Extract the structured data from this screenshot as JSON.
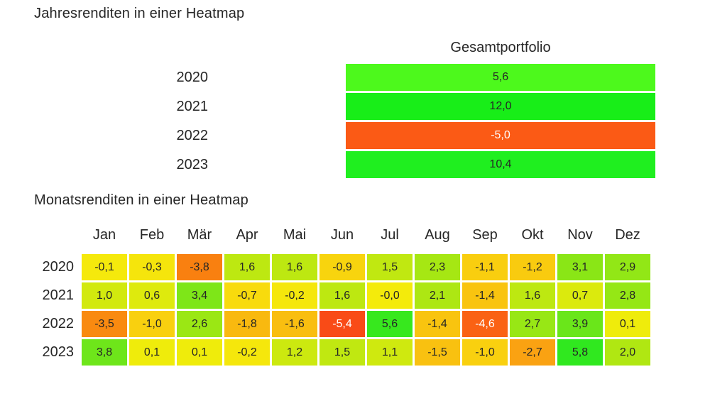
{
  "annual": {
    "title": "Jahresrenditen in einer Heatmap",
    "column_header": "Gesamtportfolio",
    "rows": [
      {
        "year": "2020",
        "value": "5,6",
        "color": "#4DF91C"
      },
      {
        "year": "2021",
        "value": "12,0",
        "color": "#18EE18"
      },
      {
        "year": "2022",
        "value": "-5,0",
        "color": "#FB5A15"
      },
      {
        "year": "2023",
        "value": "10,4",
        "color": "#1FEF1F"
      }
    ]
  },
  "monthly": {
    "title": "Monatsrenditen in einer Heatmap",
    "months": [
      "Jan",
      "Feb",
      "Mär",
      "Apr",
      "Mai",
      "Jun",
      "Jul",
      "Aug",
      "Sep",
      "Okt",
      "Nov",
      "Dez"
    ],
    "rows": [
      {
        "year": "2020",
        "values": [
          "-0,1",
          "-0,3",
          "-3,8",
          "1,6",
          "1,6",
          "-0,9",
          "1,5",
          "2,3",
          "-1,1",
          "-1,2",
          "3,1",
          "2,9"
        ],
        "colors": [
          "#F5E90C",
          "#F5E50C",
          "#F98010",
          "#BDE811",
          "#BDE811",
          "#F8D40E",
          "#C0E811",
          "#A6E713",
          "#F9CE0F",
          "#F9CB0F",
          "#8AE616",
          "#92E716"
        ]
      },
      {
        "year": "2021",
        "values": [
          "1,0",
          "0,6",
          "3,4",
          "-0,7",
          "-0,2",
          "1,6",
          "-0,0",
          "2,1",
          "-1,4",
          "1,6",
          "0,7",
          "2,8"
        ],
        "colors": [
          "#D2E90E",
          "#DEEA0D",
          "#7EE618",
          "#F8DB0D",
          "#F5E70C",
          "#BDE811",
          "#F4EB0B",
          "#ADE713",
          "#F9C40F",
          "#BDE811",
          "#DBEA0D",
          "#95E715"
        ]
      },
      {
        "year": "2022",
        "values": [
          "-3,5",
          "-1,0",
          "2,6",
          "-1,8",
          "-1,6",
          "-5,4",
          "5,6",
          "-1,4",
          "-4,6",
          "2,7",
          "3,9",
          "0,1"
        ],
        "colors": [
          "#F98A10",
          "#F9D00F",
          "#9BE714",
          "#F9B90F",
          "#F9BE10",
          "#F94B17",
          "#37E81E",
          "#F9C40F",
          "#FA6214",
          "#98E715",
          "#6AE61A",
          "#EFEC0B"
        ]
      },
      {
        "year": "2023",
        "values": [
          "3,8",
          "0,1",
          "0,1",
          "-0,2",
          "1,2",
          "1,5",
          "1,1",
          "-1,5",
          "-1,0",
          "-2,7",
          "5,8",
          "2,0"
        ],
        "colors": [
          "#6EE61A",
          "#EFEC0B",
          "#EFEC0B",
          "#F5E70C",
          "#CCE90F",
          "#C0E811",
          "#CFE90F",
          "#F9C110",
          "#F9D00F",
          "#FAA212",
          "#30E81F",
          "#B0E712"
        ]
      }
    ]
  },
  "style": {
    "dark_text": "#262626",
    "white_text": "#ffffff",
    "white_text_threshold": -4.0
  },
  "chart_data": [
    {
      "type": "heatmap",
      "title": "Jahresrenditen in einer Heatmap",
      "columns": [
        "Gesamtportfolio"
      ],
      "rows": [
        "2020",
        "2021",
        "2022",
        "2023"
      ],
      "values": [
        [
          5.6
        ],
        [
          12.0
        ],
        [
          -5.0
        ],
        [
          10.4
        ]
      ],
      "color_scale": "red-orange for negative, yellow near zero, green for positive (scaled to -5.0..12.0)",
      "number_format": "german decimal comma, one decimal place"
    },
    {
      "type": "heatmap",
      "title": "Monatsrenditen in einer Heatmap",
      "columns": [
        "Jan",
        "Feb",
        "Mär",
        "Apr",
        "Mai",
        "Jun",
        "Jul",
        "Aug",
        "Sep",
        "Okt",
        "Nov",
        "Dez"
      ],
      "rows": [
        "2020",
        "2021",
        "2022",
        "2023"
      ],
      "values": [
        [
          -0.1,
          -0.3,
          -3.8,
          1.6,
          1.6,
          -0.9,
          1.5,
          2.3,
          -1.1,
          -1.2,
          3.1,
          2.9
        ],
        [
          1.0,
          0.6,
          3.4,
          -0.7,
          -0.2,
          1.6,
          -0.0,
          2.1,
          -1.4,
          1.6,
          0.7,
          2.8
        ],
        [
          -3.5,
          -1.0,
          2.6,
          -1.8,
          -1.6,
          -5.4,
          5.6,
          -1.4,
          -4.6,
          2.7,
          3.9,
          0.1
        ],
        [
          3.8,
          0.1,
          0.1,
          -0.2,
          1.2,
          1.5,
          1.1,
          -1.5,
          -1.0,
          -2.7,
          5.8,
          2.0
        ]
      ],
      "color_scale": "red-orange for negative, yellow near zero, green for positive (scaled to -5.4..5.8)",
      "number_format": "german decimal comma, one decimal place"
    }
  ]
}
